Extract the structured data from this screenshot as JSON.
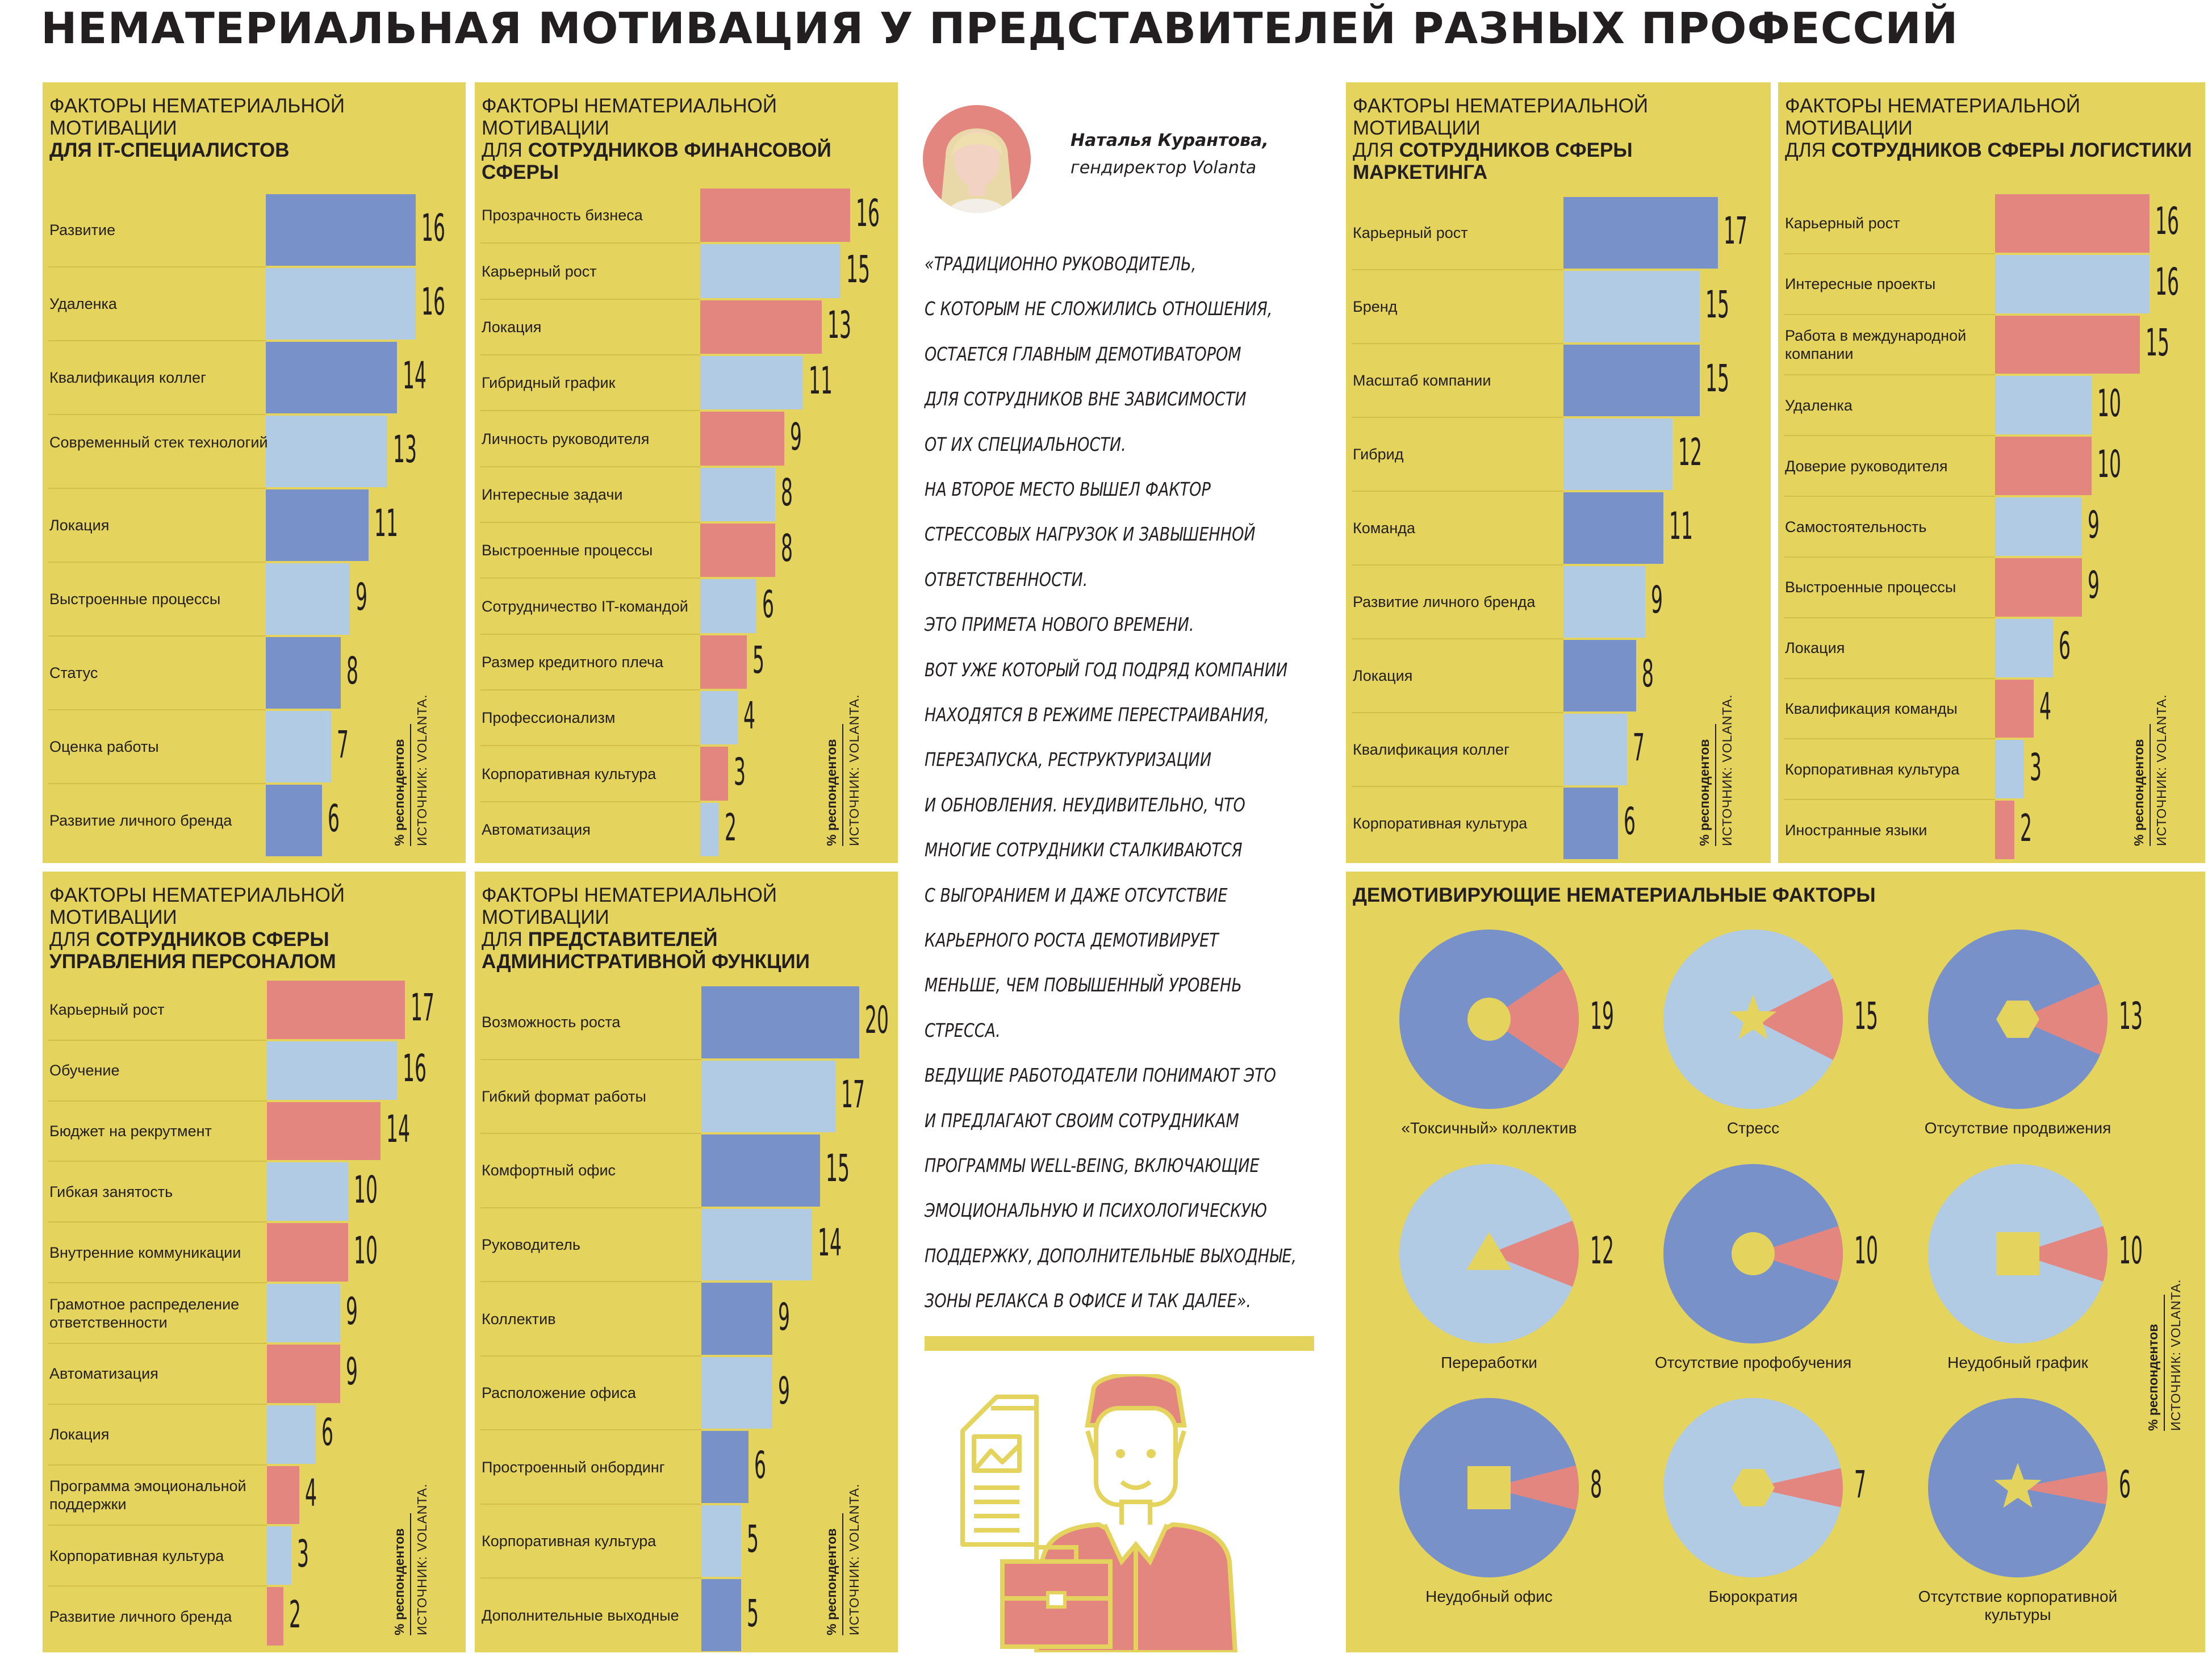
{
  "title": "НЕМАТЕРИАЛЬНАЯ МОТИВАЦИЯ У ПРЕДСТАВИТЕЛЕЙ РАЗНЫХ ПРОФЕССИЙ",
  "colors": {
    "panel": "#e4d35c",
    "blue": "#7892c9",
    "light_blue": "#b1cbe4",
    "pink": "#e48680"
  },
  "source_unit": "% респондентов",
  "source_name": "ИСТОЧНИК: VOLANTA.",
  "quote": {
    "author": "Наталья Курантова,",
    "role": "гендиректор Volanta",
    "lines": [
      "«ТРАДИЦИОННО РУКОВОДИТЕЛЬ,",
      "С КОТОРЫМ НЕ СЛОЖИЛИСЬ ОТНОШЕНИЯ,",
      "ОСТАЕТСЯ ГЛАВНЫМ ДЕМОТИВАТОРОМ",
      "ДЛЯ СОТРУДНИКОВ ВНЕ ЗАВИСИМОСТИ",
      "ОТ ИХ СПЕЦИАЛЬНОСТИ.",
      "НА ВТОРОЕ МЕСТО ВЫШЕЛ ФАКТОР",
      "СТРЕССОВЫХ НАГРУЗОК И ЗАВЫШЕННОЙ",
      "ОТВЕТСТВЕННОСТИ.",
      "ЭТО ПРИМЕТА НОВОГО ВРЕМЕНИ.",
      "ВОТ УЖЕ КОТОРЫЙ ГОД ПОДРЯД КОМПАНИИ",
      "НАХОДЯТСЯ В РЕЖИМЕ ПЕРЕСТРАИВАНИЯ,",
      "ПЕРЕЗАПУСКА, РЕСТРУКТУРИЗАЦИИ",
      "И ОБНОВЛЕНИЯ. НЕУДИВИТЕЛЬНО, ЧТО",
      "МНОГИЕ СОТРУДНИКИ СТАЛКИВАЮТСЯ",
      "С ВЫГОРАНИЕМ И ДАЖЕ ОТСУТСТВИЕ",
      "КАРЬЕРНОГО РОСТА ДЕМОТИВИРУЕТ",
      "МЕНЬШЕ, ЧЕМ ПОВЫШЕННЫЙ УРОВЕНЬ",
      "СТРЕССА.",
      "ВЕДУЩИЕ РАБОТОДАТЕЛИ ПОНИМАЮТ ЭТО",
      "И ПРЕДЛАГАЮТ СВОИМ СОТРУДНИКАМ",
      "ПРОГРАММЫ WELL-BEING, ВКЛЮЧАЮЩИЕ",
      "ЭМОЦИОНАЛЬНУЮ И ПСИХОЛОГИЧЕСКУЮ",
      "ПОДДЕРЖКУ, ДОПОЛНИТЕЛЬНЫЕ ВЫХОДНЫЕ,",
      "ЗОНЫ РЕЛАКСА В ОФИСЕ И ТАК ДАЛЕЕ»."
    ]
  },
  "chart_data": [
    {
      "type": "bar",
      "title_prefix": "ФАКТОРЫ НЕМАТЕРИАЛЬНОЙ МОТИВАЦИИ",
      "title_bold": "ДЛЯ IT-СПЕЦИАЛИСТОВ",
      "title_plain": "",
      "categories": [
        "Развитие",
        "Удаленка",
        "Квалификация коллег",
        "Современный стек технологий",
        "Локация",
        "Выстроенные процессы",
        "Статус",
        "Оценка работы",
        "Развитие личного бренда"
      ],
      "values": [
        16,
        16,
        14,
        13,
        11,
        9,
        8,
        7,
        6
      ],
      "colors": [
        "blue",
        "light_blue",
        "blue",
        "light_blue",
        "blue",
        "light_blue",
        "blue",
        "light_blue",
        "blue"
      ],
      "xmax": 17
    },
    {
      "type": "bar",
      "title_prefix": "ФАКТОРЫ НЕМАТЕРИАЛЬНОЙ МОТИВАЦИИ",
      "title_bold": "СОТРУДНИКОВ ФИНАНСОВОЙ СФЕРЫ",
      "title_plain": "ДЛЯ",
      "categories": [
        "Прозрачность бизнеса",
        "Карьерный рост",
        "Локация",
        "Гибридный график",
        "Личность руководителя",
        "Интересные задачи",
        "Выстроенные процессы",
        "Сотрудничество IT-командой",
        "Размер кредитного плеча",
        "Профессионализм",
        "Корпоративная культура",
        "Автоматизация"
      ],
      "values": [
        16,
        15,
        13,
        11,
        9,
        8,
        8,
        6,
        5,
        4,
        3,
        2
      ],
      "colors": [
        "pink",
        "light_blue",
        "pink",
        "light_blue",
        "pink",
        "light_blue",
        "pink",
        "light_blue",
        "pink",
        "light_blue",
        "pink",
        "light_blue"
      ],
      "xmax": 17
    },
    {
      "type": "bar",
      "title_prefix": "ФАКТОРЫ НЕМАТЕРИАЛЬНОЙ МОТИВАЦИИ",
      "title_bold": "СОТРУДНИКОВ СФЕРЫ МАРКЕТИНГА",
      "title_plain": "ДЛЯ",
      "categories": [
        "Карьерный рост",
        "Бренд",
        "Масштаб компании",
        "Гибрид",
        "Команда",
        "Развитие личного бренда",
        "Локация",
        "Квалификация коллег",
        "Корпоративная культура"
      ],
      "values": [
        17,
        15,
        15,
        12,
        11,
        9,
        8,
        7,
        6
      ],
      "colors": [
        "blue",
        "light_blue",
        "blue",
        "light_blue",
        "blue",
        "light_blue",
        "blue",
        "light_blue",
        "blue"
      ],
      "xmax": 17.5
    },
    {
      "type": "bar",
      "title_prefix": "ФАКТОРЫ НЕМАТЕРИАЛЬНОЙ МОТИВАЦИИ",
      "title_bold": "СОТРУДНИКОВ СФЕРЫ ЛОГИСТИКИ",
      "title_plain": "ДЛЯ",
      "categories": [
        "Карьерный рост",
        "Интересные проекты",
        "Работа в международной компании",
        "Удаленка",
        "Доверие руководителя",
        "Самостоятельность",
        "Выстроенные процессы",
        "Локация",
        "Квалификация команды",
        "Корпоративная культура",
        "Иностранные языки"
      ],
      "values": [
        16,
        16,
        15,
        10,
        10,
        9,
        9,
        6,
        4,
        3,
        2
      ],
      "colors": [
        "pink",
        "light_blue",
        "pink",
        "light_blue",
        "pink",
        "light_blue",
        "pink",
        "light_blue",
        "pink",
        "light_blue",
        "pink"
      ],
      "xmax": 16.5
    },
    {
      "type": "bar",
      "title_prefix": "ФАКТОРЫ НЕМАТЕРИАЛЬНОЙ МОТИВАЦИИ",
      "title_bold": "СОТРУДНИКОВ СФЕРЫ УПРАВЛЕНИЯ ПЕРСОНАЛОМ",
      "title_plain": "ДЛЯ",
      "categories": [
        "Карьерный рост",
        "Обучение",
        "Бюджет на рекрутмент",
        "Гибкая занятость",
        "Внутренние коммуникации",
        "Грамотное распределение ответственности",
        "Автоматизация",
        "Локация",
        "Программа эмоциональной поддержки",
        "Корпоративная культура",
        "Развитие личного бренда"
      ],
      "values": [
        17,
        16,
        14,
        10,
        10,
        9,
        9,
        6,
        4,
        3,
        2
      ],
      "colors": [
        "pink",
        "light_blue",
        "pink",
        "light_blue",
        "pink",
        "light_blue",
        "pink",
        "light_blue",
        "pink",
        "light_blue",
        "pink"
      ],
      "xmax": 17.5
    },
    {
      "type": "bar",
      "title_prefix": "ФАКТОРЫ НЕМАТЕРИАЛЬНОЙ МОТИВАЦИИ",
      "title_bold": "ПРЕДСТАВИТЕЛЕЙ АДМИНИСТРАТИВНОЙ ФУНКЦИИ",
      "title_plain": "ДЛЯ",
      "categories": [
        "Возможность роста",
        "Гибкий формат работы",
        "Комфортный офис",
        "Руководитель",
        "Коллектив",
        "Расположение офиса",
        "Простроенный онбординг",
        "Корпоративная культура",
        "Дополнительные выходные"
      ],
      "values": [
        20,
        17,
        15,
        14,
        9,
        9,
        6,
        5,
        5
      ],
      "colors": [
        "blue",
        "light_blue",
        "blue",
        "light_blue",
        "blue",
        "light_blue",
        "blue",
        "light_blue",
        "blue"
      ],
      "xmax": 20.5
    },
    {
      "type": "pie",
      "title": "ДЕМОТИВИРУЮЩИЕ НЕМАТЕРИАЛЬНЫЕ ФАКТОРЫ",
      "categories": [
        "«Токсичный» коллектив",
        "Стресс",
        "Отсутствие продвижения",
        "Переработки",
        "Отсутствие профобучения",
        "Неудобный график",
        "Неудобный офис",
        "Бюрократия",
        "Отсутствие корпоративной культуры"
      ],
      "values": [
        19,
        15,
        13,
        12,
        10,
        10,
        8,
        7,
        6
      ],
      "base_colors": [
        "blue",
        "light_blue",
        "blue",
        "light_blue",
        "blue",
        "light_blue",
        "blue",
        "light_blue",
        "blue"
      ],
      "icons": [
        "circle",
        "star",
        "hexagon",
        "triangle",
        "circle",
        "square",
        "square",
        "hexagon",
        "star"
      ]
    }
  ]
}
